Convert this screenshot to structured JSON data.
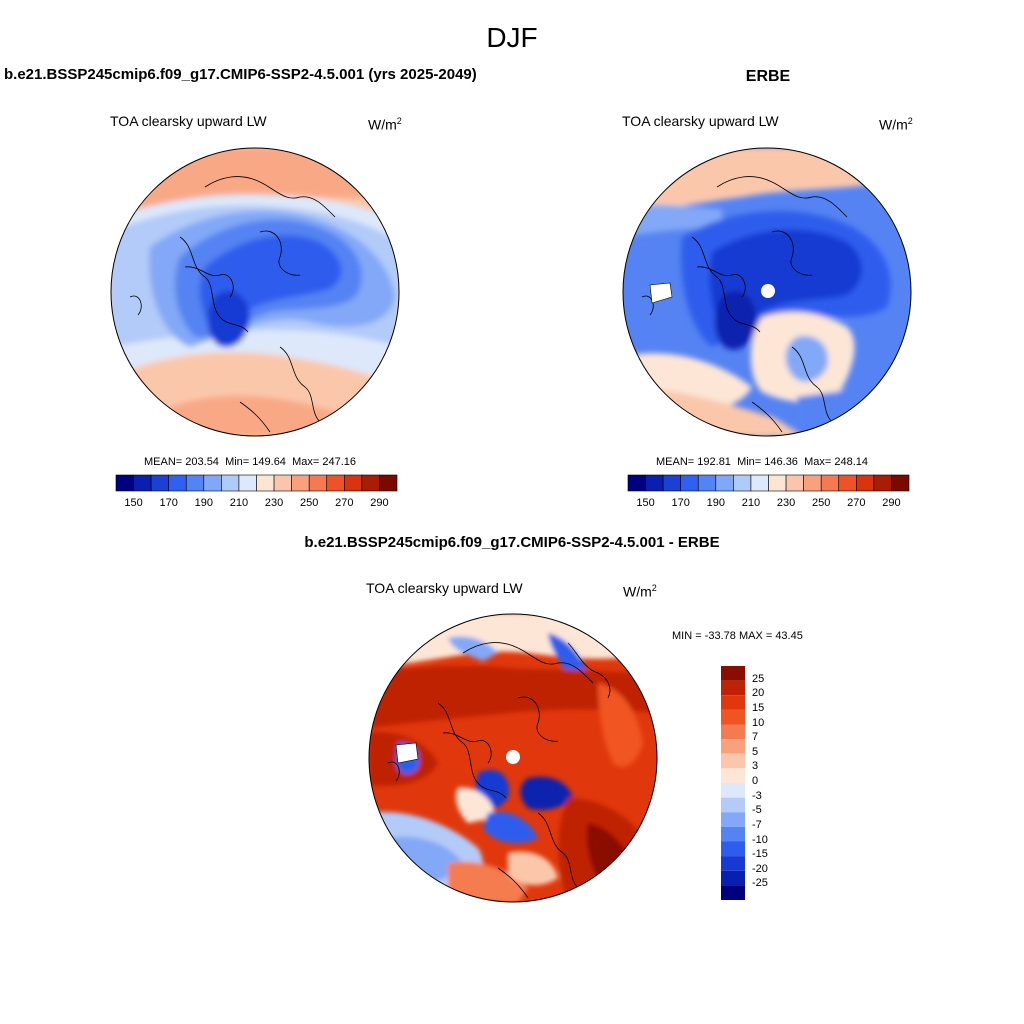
{
  "season": "DJF",
  "panels": {
    "model": {
      "title": "b.e21.BSSP245cmip6.f09_g17.CMIP6-SSP2-4.5.001 (yrs 2025-2049)",
      "variable": "TOA clearsky upward LW",
      "units_base": "W/m",
      "units_exp": "2",
      "mean_label": "MEAN=",
      "mean": "203.54",
      "min_label": "Min=",
      "min": "149.64",
      "max_label": "Max=",
      "max": "247.16"
    },
    "obs": {
      "title": "ERBE",
      "variable": "TOA clearsky upward LW",
      "units_base": "W/m",
      "units_exp": "2",
      "mean_label": "MEAN=",
      "mean": "192.81",
      "min_label": "Min=",
      "min": "146.36",
      "max_label": "Max=",
      "max": "248.14"
    },
    "diff": {
      "title": "b.e21.BSSP245cmip6.f09_g17.CMIP6-SSP2-4.5.001 - ERBE",
      "variable": "TOA clearsky upward LW",
      "units_base": "W/m",
      "units_exp": "2",
      "minmax_text": "MIN = -33.78 MAX =  43.45"
    }
  },
  "colorbar_abs": {
    "tick_labels": [
      "150",
      "170",
      "190",
      "210",
      "230",
      "250",
      "270",
      "290"
    ],
    "colors": [
      "#000080",
      "#0a1fb0",
      "#1c3fd6",
      "#3060f0",
      "#5384f5",
      "#80a8f8",
      "#b0cbf9",
      "#dde9fb",
      "#fde5d4",
      "#fbc5ab",
      "#f8a17c",
      "#f47a52",
      "#ee5328",
      "#d8340f",
      "#aa1d05",
      "#7a0a00"
    ]
  },
  "colorbar_diff": {
    "labels": [
      "25",
      "20",
      "15",
      "10",
      "7",
      "5",
      "3",
      "0",
      "-3",
      "-5",
      "-7",
      "-10",
      "-15",
      "-20",
      "-25"
    ],
    "colors": [
      "#8b0d00",
      "#bf2205",
      "#e0380c",
      "#f05422",
      "#f47b50",
      "#f8a27d",
      "#fbc7ac",
      "#fde6d6",
      "#dde8fb",
      "#b3cbf9",
      "#82a8f7",
      "#5583f3",
      "#2d5ded",
      "#163bd2",
      "#0920ae",
      "#00007c"
    ]
  }
}
